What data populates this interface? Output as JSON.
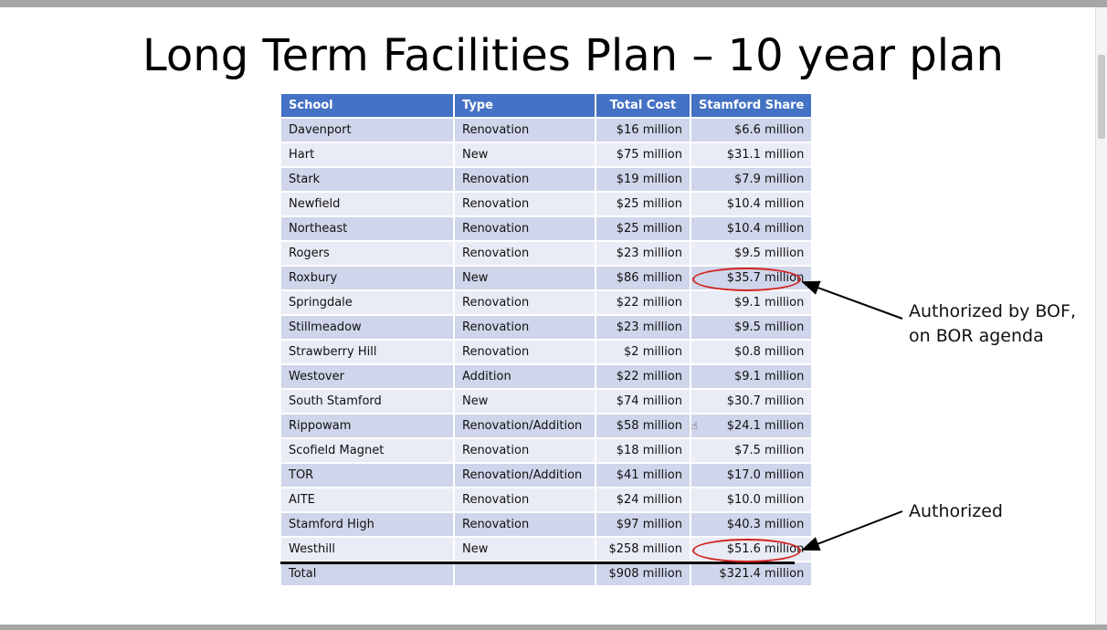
{
  "title": "Long Term Facilities Plan – 10 year plan",
  "table": {
    "headers": [
      "School",
      "Type",
      "Total Cost",
      "Stamford Share"
    ],
    "rows": [
      [
        "Davenport",
        "Renovation",
        "$16 million",
        "$6.6 million"
      ],
      [
        "Hart",
        "New",
        "$75 million",
        "$31.1 million"
      ],
      [
        "Stark",
        "Renovation",
        "$19 million",
        "$7.9 million"
      ],
      [
        "Newfield",
        "Renovation",
        "$25 million",
        "$10.4 million"
      ],
      [
        "Northeast",
        "Renovation",
        "$25 million",
        "$10.4 million"
      ],
      [
        "Rogers",
        "Renovation",
        "$23 million",
        "$9.5 million"
      ],
      [
        "Roxbury",
        "New",
        "$86 million",
        "$35.7 million"
      ],
      [
        "Springdale",
        "Renovation",
        "$22 million",
        "$9.1 million"
      ],
      [
        "Stillmeadow",
        "Renovation",
        "$23 million",
        "$9.5 million"
      ],
      [
        "Strawberry Hill",
        "Renovation",
        "$2 million",
        "$0.8 million"
      ],
      [
        "Westover",
        "Addition",
        "$22 million",
        "$9.1 million"
      ],
      [
        "South Stamford",
        "New",
        "$74 million",
        "$30.7 million"
      ],
      [
        "Rippowam",
        "Renovation/Addition",
        "$58 million",
        "$24.1 million"
      ],
      [
        "Scofield Magnet",
        "Renovation",
        "$18 million",
        "$7.5 million"
      ],
      [
        "TOR",
        "Renovation/Addition",
        "$41 million",
        "$17.0 million"
      ],
      [
        "AITE",
        "Renovation",
        "$24 million",
        "$10.0 million"
      ],
      [
        "Stamford High",
        "Renovation",
        "$97 million",
        "$40.3 million"
      ],
      [
        "Westhill",
        "New",
        "$258 million",
        "$51.6 million"
      ]
    ],
    "total": [
      "Total",
      "",
      "$908 million",
      "$321.4 million"
    ]
  },
  "callouts": {
    "roxbury_line1": "Authorized by BOF,",
    "roxbury_line2": "on BOR agenda",
    "westhill": "Authorized"
  },
  "colors": {
    "header": "#4472c4",
    "row_dark": "#cfd5ea",
    "row_light": "#e9ebf5",
    "highlight_oval": "#d1231f"
  }
}
